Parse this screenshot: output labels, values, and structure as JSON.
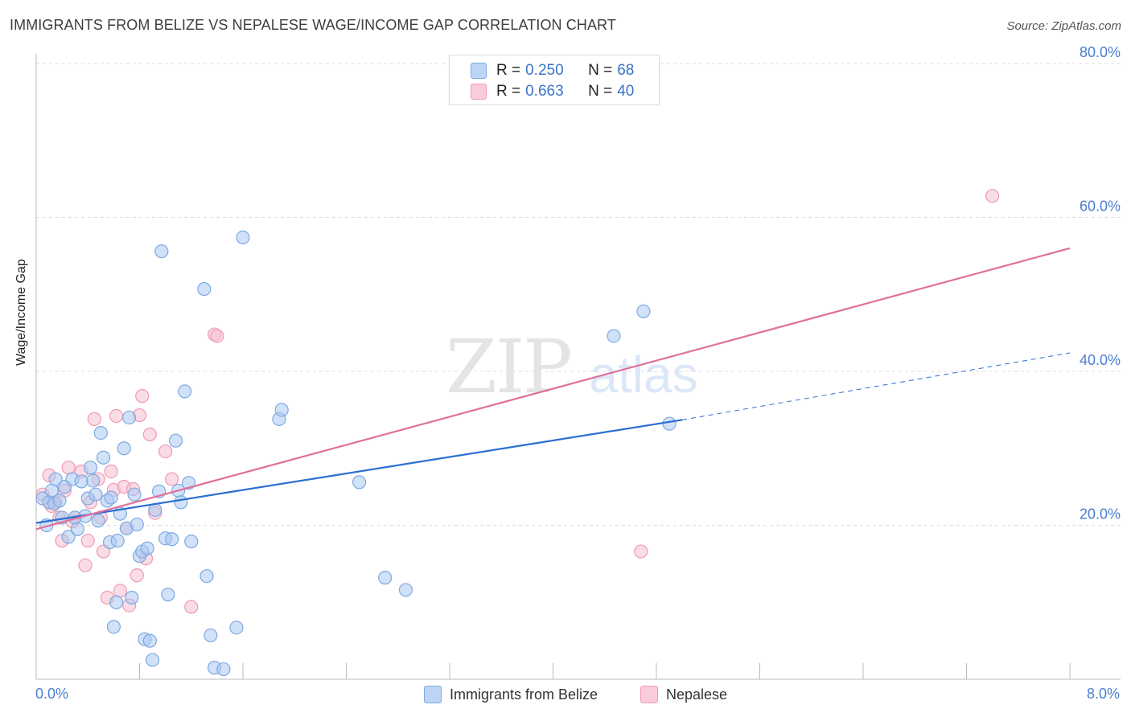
{
  "title": "IMMIGRANTS FROM BELIZE VS NEPALESE WAGE/INCOME GAP CORRELATION CHART",
  "source": "Source: ZipAtlas.com",
  "watermark": {
    "zip": "ZIP",
    "atlas": "atlas"
  },
  "colors": {
    "blue_fill": "#a9c8f2",
    "blue_stroke": "#7fa9e0",
    "blue_line": "#2b6fd1",
    "pink_fill": "#f6bfd0",
    "pink_stroke": "#ee9ab6",
    "pink_line": "#e0709a",
    "axis_text": "#4a7fd0",
    "grid": "#dddddd"
  },
  "legend": {
    "rows": [
      {
        "r_label": "R =",
        "r_value": "0.250",
        "n_label": "N =",
        "n_value": "68"
      },
      {
        "r_label": "R =",
        "r_value": "0.663",
        "n_label": "N =",
        "n_value": "40"
      }
    ]
  },
  "bottom_legend": {
    "series1": "Immigrants from Belize",
    "series2": "Nepalese"
  },
  "chart_data": {
    "type": "scatter",
    "xlabel": "",
    "ylabel": "Wage/Income Gap",
    "xlim": [
      0,
      8
    ],
    "ylim": [
      0,
      80
    ],
    "x_tick_labels": {
      "left": "0.0%",
      "right": "8.0%"
    },
    "y_ticks": [
      {
        "value": 20,
        "label": "20.0%"
      },
      {
        "value": 40,
        "label": "40.0%"
      },
      {
        "value": 60,
        "label": "60.0%"
      },
      {
        "value": 80,
        "label": "80.0%"
      }
    ],
    "series": [
      {
        "name": "Immigrants from Belize",
        "color": "blue",
        "r": "0.250",
        "n": "68",
        "trend": {
          "x0": 0.0,
          "y0": 20.3,
          "x1": 5.0,
          "y1": 33.7,
          "dash_to_x": 8.0,
          "dash_to_y": 42.4
        },
        "points": [
          [
            0.05,
            23.5
          ],
          [
            0.08,
            20.0
          ],
          [
            0.1,
            23.0
          ],
          [
            0.12,
            24.5
          ],
          [
            0.14,
            22.8
          ],
          [
            0.18,
            23.2
          ],
          [
            0.2,
            21.0
          ],
          [
            0.22,
            25.0
          ],
          [
            0.25,
            18.5
          ],
          [
            0.28,
            26.0
          ],
          [
            0.3,
            21.0
          ],
          [
            0.32,
            19.5
          ],
          [
            0.35,
            25.7
          ],
          [
            0.38,
            21.2
          ],
          [
            0.4,
            23.5
          ],
          [
            0.42,
            27.5
          ],
          [
            0.44,
            25.8
          ],
          [
            0.46,
            24.0
          ],
          [
            0.48,
            20.6
          ],
          [
            0.5,
            32.0
          ],
          [
            0.52,
            28.8
          ],
          [
            0.55,
            23.2
          ],
          [
            0.57,
            17.8
          ],
          [
            0.58,
            23.6
          ],
          [
            0.6,
            6.8
          ],
          [
            0.62,
            10.0
          ],
          [
            0.63,
            18.0
          ],
          [
            0.65,
            21.5
          ],
          [
            0.68,
            30.0
          ],
          [
            0.7,
            19.6
          ],
          [
            0.72,
            34.0
          ],
          [
            0.74,
            10.6
          ],
          [
            0.76,
            24.0
          ],
          [
            0.78,
            20.1
          ],
          [
            0.8,
            16.0
          ],
          [
            0.82,
            16.6
          ],
          [
            0.84,
            5.2
          ],
          [
            0.86,
            17.0
          ],
          [
            0.88,
            5.0
          ],
          [
            0.9,
            2.5
          ],
          [
            0.92,
            22.0
          ],
          [
            0.95,
            24.4
          ],
          [
            0.97,
            55.6
          ],
          [
            1.0,
            18.3
          ],
          [
            1.02,
            11.0
          ],
          [
            1.05,
            18.2
          ],
          [
            1.08,
            31.0
          ],
          [
            1.1,
            24.5
          ],
          [
            1.12,
            23.0
          ],
          [
            1.15,
            37.4
          ],
          [
            1.18,
            25.5
          ],
          [
            1.2,
            17.9
          ],
          [
            1.3,
            50.7
          ],
          [
            1.32,
            13.4
          ],
          [
            1.35,
            5.7
          ],
          [
            1.38,
            1.5
          ],
          [
            1.45,
            1.3
          ],
          [
            1.55,
            6.7
          ],
          [
            1.6,
            57.4
          ],
          [
            1.88,
            33.8
          ],
          [
            1.9,
            35.0
          ],
          [
            2.5,
            25.6
          ],
          [
            2.7,
            13.2
          ],
          [
            2.86,
            11.6
          ],
          [
            4.47,
            44.6
          ],
          [
            4.7,
            47.8
          ],
          [
            4.9,
            33.2
          ],
          [
            0.15,
            26.0
          ]
        ]
      },
      {
        "name": "Nepalese",
        "color": "pink",
        "r": "0.663",
        "n": "40",
        "trend": {
          "x0": 0.0,
          "y0": 19.5,
          "x1": 8.0,
          "y1": 56.0
        },
        "points": [
          [
            0.05,
            24.0
          ],
          [
            0.1,
            26.5
          ],
          [
            0.12,
            22.5
          ],
          [
            0.15,
            23.0
          ],
          [
            0.18,
            21.0
          ],
          [
            0.2,
            18.0
          ],
          [
            0.22,
            24.5
          ],
          [
            0.25,
            27.5
          ],
          [
            0.28,
            20.5
          ],
          [
            0.3,
            21.0
          ],
          [
            0.35,
            27.0
          ],
          [
            0.38,
            14.8
          ],
          [
            0.4,
            18.0
          ],
          [
            0.42,
            23.0
          ],
          [
            0.45,
            33.8
          ],
          [
            0.48,
            26.0
          ],
          [
            0.5,
            21.0
          ],
          [
            0.52,
            16.6
          ],
          [
            0.55,
            10.6
          ],
          [
            0.58,
            27.0
          ],
          [
            0.6,
            24.6
          ],
          [
            0.62,
            34.2
          ],
          [
            0.65,
            11.5
          ],
          [
            0.68,
            25.0
          ],
          [
            0.7,
            19.6
          ],
          [
            0.72,
            9.6
          ],
          [
            0.75,
            24.7
          ],
          [
            0.78,
            13.5
          ],
          [
            0.8,
            34.3
          ],
          [
            0.82,
            36.8
          ],
          [
            0.85,
            15.7
          ],
          [
            0.88,
            31.8
          ],
          [
            0.92,
            21.6
          ],
          [
            1.0,
            29.6
          ],
          [
            1.05,
            26.0
          ],
          [
            1.2,
            9.4
          ],
          [
            1.38,
            44.8
          ],
          [
            1.4,
            44.6
          ],
          [
            4.68,
            16.6
          ],
          [
            7.4,
            62.8
          ]
        ]
      }
    ]
  }
}
